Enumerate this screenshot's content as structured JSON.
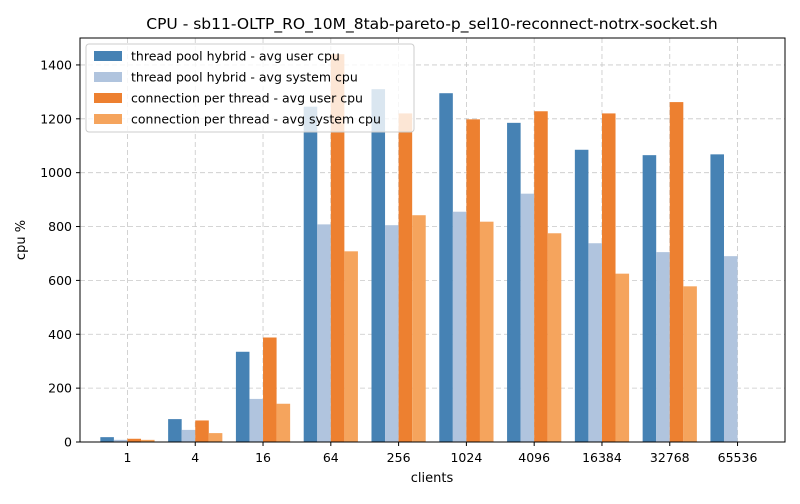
{
  "chart_data": {
    "type": "bar",
    "title": "CPU - sb11-OLTP_RO_10M_8tab-pareto-p_sel10-reconnect-notrx-socket.sh",
    "xlabel": "clients",
    "ylabel": "cpu %",
    "categories": [
      "1",
      "4",
      "16",
      "64",
      "256",
      "1024",
      "4096",
      "16384",
      "32768",
      "65536"
    ],
    "ylim": [
      0,
      1500
    ],
    "yticks": [
      0,
      200,
      400,
      600,
      800,
      1000,
      1200,
      1400
    ],
    "grid": true,
    "legend_position": "top-left",
    "series": [
      {
        "name": "thread pool hybrid - avg user cpu",
        "color": "#4682b4",
        "values": [
          18,
          85,
          335,
          1245,
          1310,
          1295,
          1185,
          1085,
          1065,
          1068
        ]
      },
      {
        "name": "thread pool hybrid - avg system cpu",
        "color": "#b0c4de",
        "values": [
          8,
          45,
          160,
          808,
          805,
          855,
          922,
          738,
          705,
          690
        ]
      },
      {
        "name": "connection per thread - avg user cpu",
        "color": "#ed8030",
        "values": [
          12,
          80,
          388,
          1440,
          1220,
          1198,
          1228,
          1220,
          1262,
          null
        ]
      },
      {
        "name": "connection per thread - avg system cpu",
        "color": "#f5a45d",
        "values": [
          8,
          33,
          142,
          708,
          842,
          818,
          775,
          625,
          578,
          null
        ]
      }
    ]
  }
}
